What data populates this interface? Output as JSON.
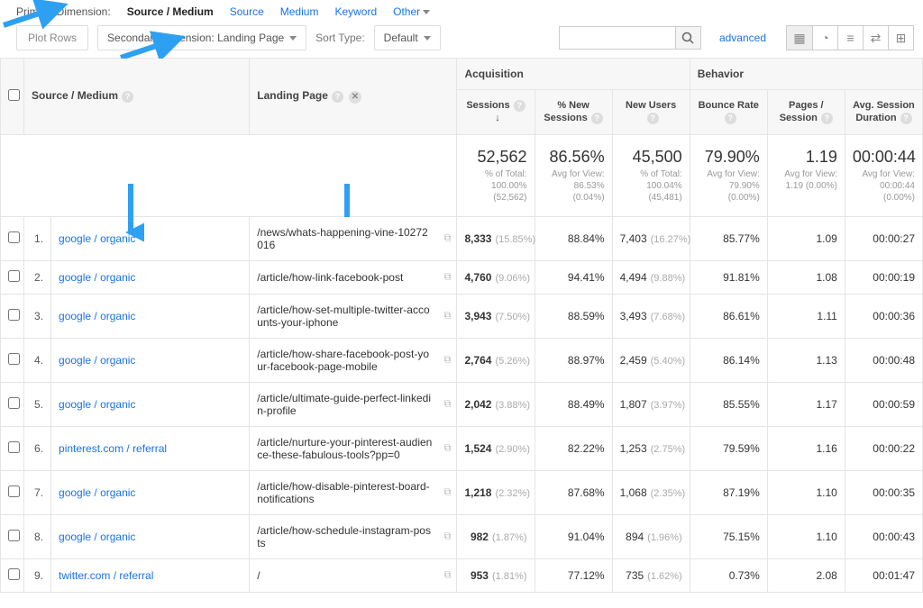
{
  "dimBar": {
    "label": "Primary Dimension:",
    "active": "Source / Medium",
    "links": [
      "Source",
      "Medium",
      "Keyword"
    ],
    "other": "Other"
  },
  "controls": {
    "plotBtn": "Plot Rows",
    "secDim": "Secondary dimension: Landing Page",
    "sortLabel": "Sort Type:",
    "sortVal": "Default",
    "advanced": "advanced",
    "searchPlaceholder": ""
  },
  "headers": {
    "sourceMedium": "Source / Medium",
    "landingPage": "Landing Page",
    "acquisition": "Acquisition",
    "behavior": "Behavior",
    "sessions": "Sessions",
    "pctNew": "% New Sessions",
    "newUsers": "New Users",
    "bounce": "Bounce Rate",
    "pagesSess": "Pages / Session",
    "avgDur": "Avg. Session Duration"
  },
  "summary": {
    "sessions": {
      "big": "52,562",
      "sub": "% of Total: 100.00% (52,562)"
    },
    "pctNew": {
      "big": "86.56%",
      "sub": "Avg for View: 86.53% (0.04%)"
    },
    "newUsers": {
      "big": "45,500",
      "sub": "% of Total: 100.04% (45,481)"
    },
    "bounce": {
      "big": "79.90%",
      "sub": "Avg for View: 79.90% (0.00%)"
    },
    "pagesSess": {
      "big": "1.19",
      "sub": "Avg for View: 1.19 (0.00%)"
    },
    "avgDur": {
      "big": "00:00:44",
      "sub": "Avg for View: 00:00:44 (0.00%)"
    }
  },
  "rows": [
    {
      "n": "1.",
      "src": "google / organic",
      "lp": "/news/whats-happening-vine-10272016",
      "sess": "8,333",
      "sessPct": "(15.85%)",
      "pctNew": "88.84%",
      "newU": "7,403",
      "newUPct": "(16.27%)",
      "bounce": "85.77%",
      "pages": "1.09",
      "dur": "00:00:27"
    },
    {
      "n": "2.",
      "src": "google / organic",
      "lp": "/article/how-link-facebook-post",
      "sess": "4,760",
      "sessPct": "(9.06%)",
      "pctNew": "94.41%",
      "newU": "4,494",
      "newUPct": "(9.88%)",
      "bounce": "91.81%",
      "pages": "1.08",
      "dur": "00:00:19"
    },
    {
      "n": "3.",
      "src": "google / organic",
      "lp": "/article/how-set-multiple-twitter-accounts-your-iphone",
      "sess": "3,943",
      "sessPct": "(7.50%)",
      "pctNew": "88.59%",
      "newU": "3,493",
      "newUPct": "(7.68%)",
      "bounce": "86.61%",
      "pages": "1.11",
      "dur": "00:00:36"
    },
    {
      "n": "4.",
      "src": "google / organic",
      "lp": "/article/how-share-facebook-post-your-facebook-page-mobile",
      "sess": "2,764",
      "sessPct": "(5.26%)",
      "pctNew": "88.97%",
      "newU": "2,459",
      "newUPct": "(5.40%)",
      "bounce": "86.14%",
      "pages": "1.13",
      "dur": "00:00:48"
    },
    {
      "n": "5.",
      "src": "google / organic",
      "lp": "/article/ultimate-guide-perfect-linkedin-profile",
      "sess": "2,042",
      "sessPct": "(3.88%)",
      "pctNew": "88.49%",
      "newU": "1,807",
      "newUPct": "(3.97%)",
      "bounce": "85.55%",
      "pages": "1.17",
      "dur": "00:00:59"
    },
    {
      "n": "6.",
      "src": "pinterest.com / referral",
      "lp": "/article/nurture-your-pinterest-audience-these-fabulous-tools?pp=0",
      "sess": "1,524",
      "sessPct": "(2.90%)",
      "pctNew": "82.22%",
      "newU": "1,253",
      "newUPct": "(2.75%)",
      "bounce": "79.59%",
      "pages": "1.16",
      "dur": "00:00:22"
    },
    {
      "n": "7.",
      "src": "google / organic",
      "lp": "/article/how-disable-pinterest-board-notifications",
      "sess": "1,218",
      "sessPct": "(2.32%)",
      "pctNew": "87.68%",
      "newU": "1,068",
      "newUPct": "(2.35%)",
      "bounce": "87.19%",
      "pages": "1.10",
      "dur": "00:00:35"
    },
    {
      "n": "8.",
      "src": "google / organic",
      "lp": "/article/how-schedule-instagram-posts",
      "sess": "982",
      "sessPct": "(1.87%)",
      "pctNew": "91.04%",
      "newU": "894",
      "newUPct": "(1.96%)",
      "bounce": "75.15%",
      "pages": "1.10",
      "dur": "00:00:43"
    },
    {
      "n": "9.",
      "src": "twitter.com / referral",
      "lp": "/",
      "sess": "953",
      "sessPct": "(1.81%)",
      "pctNew": "77.12%",
      "newU": "735",
      "newUPct": "(1.62%)",
      "bounce": "0.73%",
      "pages": "2.08",
      "dur": "00:01:47"
    }
  ],
  "colors": {
    "link": "#1a73e8",
    "arrow": "#2ea0f2",
    "border": "#e5e5e5",
    "headerBg": "#f7f7f7"
  }
}
